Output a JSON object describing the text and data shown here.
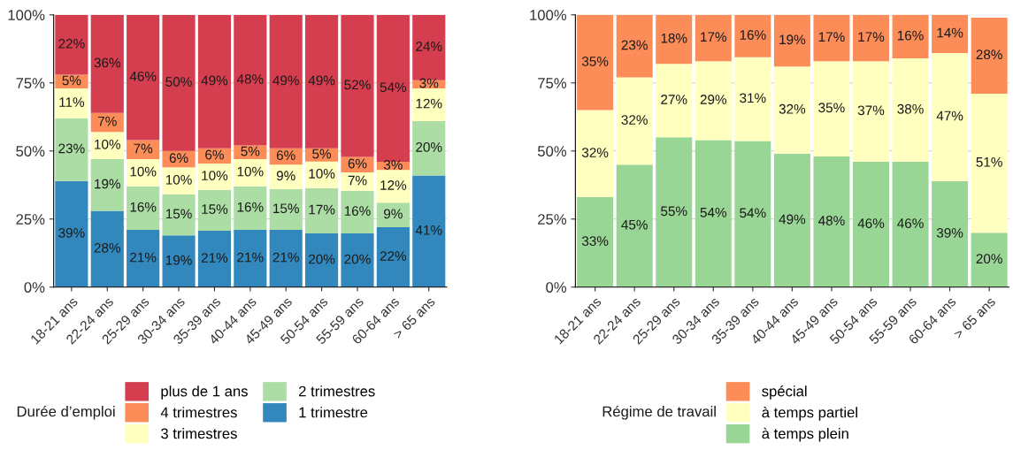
{
  "chart_data": [
    {
      "type": "bar",
      "stacked": true,
      "legend_title": "Durée d’emploi",
      "legend": "bottom",
      "grid": "y",
      "categories": [
        "18-21 ans",
        "22-24 ans",
        "25-29 ans",
        "30-34 ans",
        "35-39 ans",
        "40-44 ans",
        "45-49 ans",
        "50-54 ans",
        "55-59 ans",
        "60-64 ans",
        "> 65 ans"
      ],
      "ylim": [
        0,
        100
      ],
      "yticks": [
        {
          "value": 0,
          "label": "0%"
        },
        {
          "value": 25,
          "label": "25%"
        },
        {
          "value": 50,
          "label": "50%"
        },
        {
          "value": 75,
          "label": "75%"
        },
        {
          "value": 100,
          "label": "100%"
        }
      ],
      "series": [
        {
          "name": "1 trimestre",
          "color": "#3288bd",
          "values": [
            39,
            28,
            21,
            19,
            20.7,
            21,
            21,
            19.7,
            19.7,
            22,
            41
          ],
          "value_labels": [
            "39%",
            "28%",
            "21%",
            "19%",
            "21%",
            "21%",
            "21%",
            "20%",
            "20%",
            "22%",
            "41%"
          ]
        },
        {
          "name": "2 trimestres",
          "color": "#abdda4",
          "values": [
            23,
            19,
            16,
            15,
            15,
            16,
            15,
            16.7,
            15.7,
            9,
            20
          ],
          "value_labels": [
            "23%",
            "19%",
            "16%",
            "15%",
            "15%",
            "16%",
            "15%",
            "17%",
            "16%",
            "9%",
            "20%"
          ]
        },
        {
          "name": "3 trimestres",
          "color": "#ffffbf",
          "values": [
            11,
            10,
            10,
            10,
            9.7,
            10,
            9,
            9.7,
            6.7,
            12,
            12
          ],
          "value_labels": [
            "11%",
            "10%",
            "10%",
            "10%",
            "10%",
            "10%",
            "9%",
            "10%",
            "7%",
            "12%",
            "12%"
          ]
        },
        {
          "name": "4 trimestres",
          "color": "#fc8d59",
          "values": [
            5,
            7,
            7,
            6,
            5.6,
            5,
            6,
            4.9,
            5.7,
            3,
            3
          ],
          "value_labels": [
            "5%",
            "7%",
            "7%",
            "6%",
            "6%",
            "5%",
            "6%",
            "5%",
            "6%",
            "3%",
            "3%"
          ]
        },
        {
          "name": "plus de 1 ans",
          "color": "#d53e4f",
          "values": [
            22,
            36,
            46,
            50,
            49,
            48,
            49,
            49,
            52.2,
            54,
            24
          ],
          "value_labels": [
            "22%",
            "36%",
            "46%",
            "50%",
            "49%",
            "48%",
            "49%",
            "49%",
            "52%",
            "54%",
            "24%"
          ]
        }
      ]
    },
    {
      "type": "bar",
      "stacked": true,
      "legend_title": "Régime de travail",
      "legend": "bottom",
      "grid": "y",
      "categories": [
        "18-21 ans",
        "22-24 ans",
        "25-29 ans",
        "30-34 ans",
        "35-39 ans",
        "40-44 ans",
        "45-49 ans",
        "50-54 ans",
        "55-59 ans",
        "60-64 ans",
        "> 65 ans"
      ],
      "ylim": [
        0,
        100
      ],
      "yticks": [
        {
          "value": 0,
          "label": "0%"
        },
        {
          "value": 25,
          "label": "25%"
        },
        {
          "value": 50,
          "label": "50%"
        },
        {
          "value": 75,
          "label": "75%"
        },
        {
          "value": 100,
          "label": "100%"
        }
      ],
      "series": [
        {
          "name": "à temps plein",
          "color": "#99d594",
          "values": [
            33,
            45,
            55,
            54,
            53.7,
            49,
            48,
            46,
            46,
            39,
            20
          ],
          "value_labels": [
            "33%",
            "45%",
            "55%",
            "54%",
            "54%",
            "49%",
            "48%",
            "46%",
            "46%",
            "39%",
            "20%"
          ]
        },
        {
          "name": "à temps partiel",
          "color": "#ffffbf",
          "values": [
            32,
            32,
            27,
            29,
            30.7,
            32,
            35,
            37,
            38,
            47,
            51
          ],
          "value_labels": [
            "32%",
            "32%",
            "27%",
            "29%",
            "31%",
            "32%",
            "35%",
            "37%",
            "38%",
            "47%",
            "51%"
          ]
        },
        {
          "name": "spécial",
          "color": "#fc8d59",
          "values": [
            35,
            23,
            18,
            17,
            15.6,
            19,
            17,
            17,
            16,
            14,
            28
          ],
          "value_labels": [
            "35%",
            "23%",
            "18%",
            "17%",
            "16%",
            "19%",
            "17%",
            "17%",
            "16%",
            "14%",
            "28%"
          ]
        }
      ]
    }
  ]
}
